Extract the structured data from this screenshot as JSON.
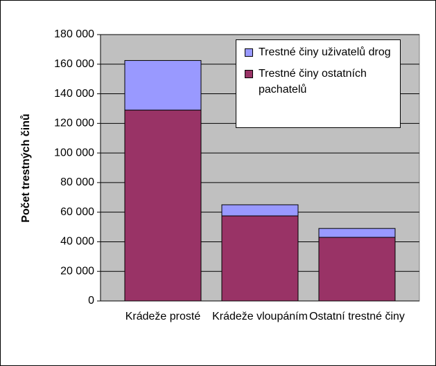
{
  "chart_data": {
    "type": "stacked_bar",
    "y_label": "Počet trestných činů",
    "categories": [
      "Krádeže prosté",
      "Krádeže vloupáním",
      "Ostatní trestné činy"
    ],
    "series": [
      {
        "name": "Trestné činy ostatních pachatelů",
        "color": "#993366",
        "values": [
          129000,
          57500,
          43000
        ]
      },
      {
        "name": "Trestné činy uživatelů drog",
        "color": "#9999ff",
        "values": [
          33500,
          7500,
          6000
        ]
      }
    ],
    "ylim": [
      0,
      180000
    ],
    "yticks": [
      0,
      {
        "value": 20000,
        "label": "20 000"
      },
      {
        "value": 40000,
        "label": "40 000"
      },
      {
        "value": 60000,
        "label": "60 000"
      },
      {
        "value": 80000,
        "label": "80 000"
      },
      {
        "value": 100000,
        "label": "100 000"
      },
      {
        "value": 120000,
        "label": "120 000"
      },
      {
        "value": 140000,
        "label": "140 000"
      },
      {
        "value": 160000,
        "label": "160 000"
      },
      {
        "value": 180000,
        "label": "180 000"
      }
    ],
    "grid": true
  }
}
